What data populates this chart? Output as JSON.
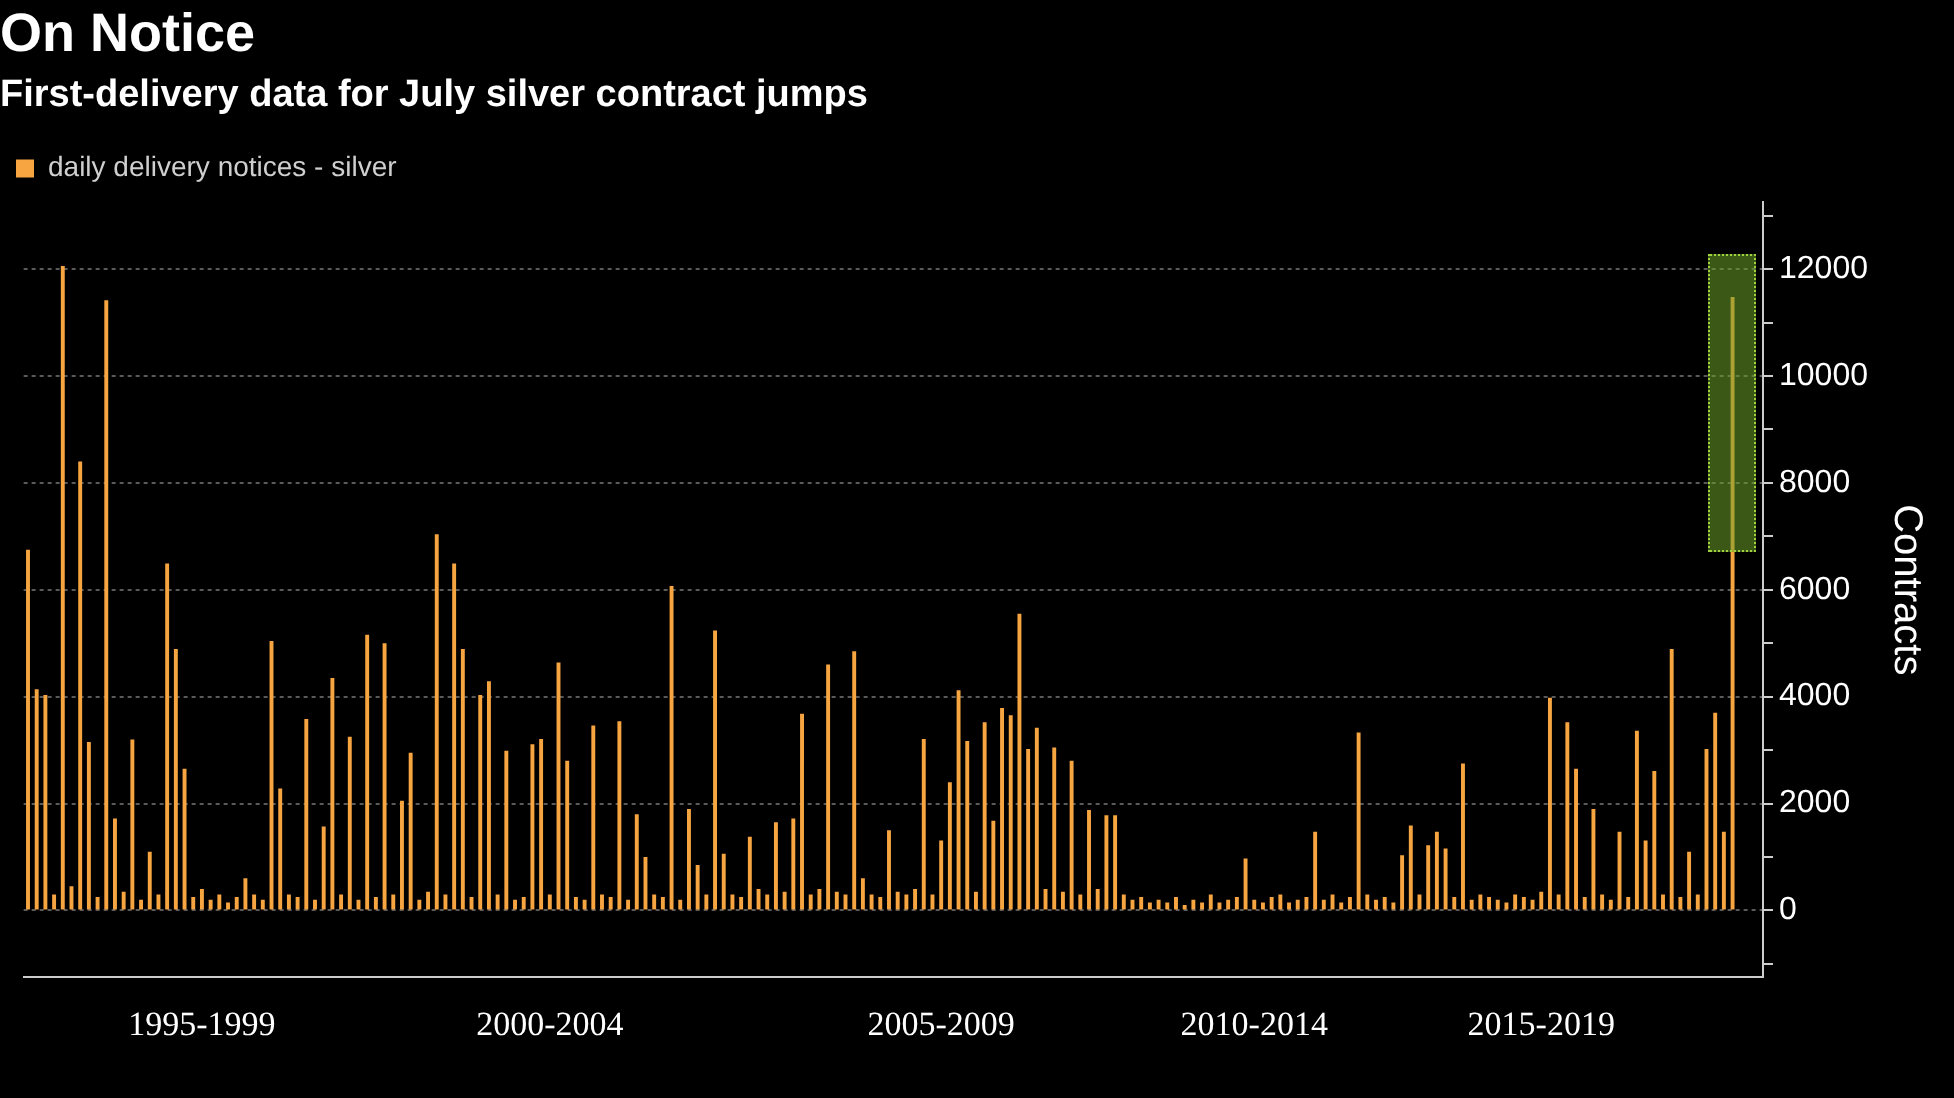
{
  "chart_data": {
    "type": "bar",
    "title": "On Notice",
    "subtitle": "First-delivery data for July silver contract jumps",
    "ylabel": "Contracts",
    "categories": [
      null,
      null,
      null,
      null,
      null,
      null,
      null,
      null,
      null,
      null,
      null,
      null,
      null,
      null,
      null,
      null,
      null,
      null,
      null,
      null,
      "1995-1999",
      null,
      null,
      null,
      null,
      null,
      null,
      null,
      null,
      null,
      null,
      null,
      null,
      null,
      null,
      null,
      null,
      null,
      null,
      null,
      null,
      null,
      null,
      null,
      null,
      null,
      null,
      null,
      null,
      null,
      null,
      null,
      null,
      null,
      null,
      null,
      null,
      null,
      null,
      null,
      "2000-2004",
      null,
      null,
      null,
      null,
      null,
      null,
      null,
      null,
      null,
      null,
      null,
      null,
      null,
      null,
      null,
      null,
      null,
      null,
      null,
      null,
      null,
      null,
      null,
      null,
      null,
      null,
      null,
      null,
      null,
      null,
      null,
      null,
      null,
      null,
      null,
      null,
      null,
      null,
      null,
      null,
      null,
      null,
      null,
      null,
      "2005-2009",
      null,
      null,
      null,
      null,
      null,
      null,
      null,
      null,
      null,
      null,
      null,
      null,
      null,
      null,
      null,
      null,
      null,
      null,
      null,
      null,
      null,
      null,
      null,
      null,
      null,
      null,
      null,
      null,
      null,
      null,
      null,
      null,
      null,
      null,
      null,
      "2010-2014",
      null,
      null,
      null,
      null,
      null,
      null,
      null,
      null,
      null,
      null,
      null,
      null,
      null,
      null,
      null,
      null,
      null,
      null,
      null,
      null,
      null,
      null,
      null,
      null,
      null,
      null,
      null,
      null,
      null,
      null,
      null,
      null,
      "2015-2019",
      null,
      null,
      null,
      null,
      null,
      null,
      null,
      null,
      null,
      null,
      null,
      null,
      null,
      null,
      null,
      null,
      null,
      null,
      null,
      null,
      null,
      null,
      null,
      null,
      null
    ],
    "series": [
      {
        "name": "daily delivery notices - silver",
        "color": "#f7a541",
        "values": [
          6750,
          4140,
          4030,
          300,
          12060,
          450,
          8400,
          3150,
          250,
          11420,
          1720,
          350,
          3200,
          200,
          1100,
          300,
          6490,
          4890,
          2650,
          250,
          400,
          200,
          300,
          150,
          250,
          600,
          300,
          200,
          5040,
          2280,
          300,
          250,
          3580,
          200,
          1570,
          4350,
          300,
          3250,
          200,
          5160,
          250,
          5000,
          300,
          2050,
          2950,
          200,
          350,
          7040,
          300,
          6490,
          4890,
          250,
          4030,
          4290,
          300,
          2990,
          200,
          250,
          3110,
          3210,
          300,
          4640,
          2800,
          250,
          200,
          3460,
          300,
          250,
          3540,
          200,
          1800,
          1000,
          300,
          250,
          6070,
          200,
          1900,
          850,
          300,
          5240,
          1060,
          300,
          250,
          1380,
          400,
          300,
          1650,
          350,
          1720,
          3680,
          300,
          400,
          4600,
          350,
          300,
          4850,
          600,
          300,
          250,
          1500,
          350,
          300,
          400,
          3210,
          300,
          1310,
          2400,
          4120,
          3170,
          350,
          3520,
          1680,
          3790,
          3650,
          5550,
          3020,
          3420,
          400,
          3050,
          350,
          2800,
          300,
          1880,
          400,
          1780,
          1780,
          300,
          200,
          250,
          150,
          200,
          150,
          250,
          100,
          200,
          150,
          300,
          150,
          200,
          250,
          970,
          200,
          150,
          250,
          300,
          150,
          200,
          250,
          1470,
          200,
          300,
          150,
          250,
          3330,
          300,
          200,
          250,
          150,
          1030,
          1590,
          300,
          1220,
          1470,
          1160,
          250,
          2750,
          200,
          300,
          250,
          200,
          150,
          300,
          250,
          200,
          350,
          3980,
          300,
          3520,
          2650,
          250,
          1900,
          300,
          200,
          1470,
          250,
          3360,
          1310,
          2610,
          300,
          4890,
          250,
          1100,
          300,
          3020,
          3700,
          1470,
          11480,
          null,
          null,
          null
        ]
      }
    ],
    "ylim": [
      -1250,
      13250
    ],
    "yticks": [
      {
        "value": -1000,
        "label": null
      },
      0,
      {
        "value": 1000,
        "label": null
      },
      2000,
      {
        "value": 3000,
        "label": null
      },
      4000,
      {
        "value": 5000,
        "label": null
      },
      6000,
      {
        "value": 7000,
        "label": null
      },
      8000,
      {
        "value": 9000,
        "label": null
      },
      10000,
      {
        "value": 11000,
        "label": null
      },
      12000,
      {
        "value": 13000,
        "label": null
      }
    ],
    "grid": "y",
    "legend": "top left"
  }
}
